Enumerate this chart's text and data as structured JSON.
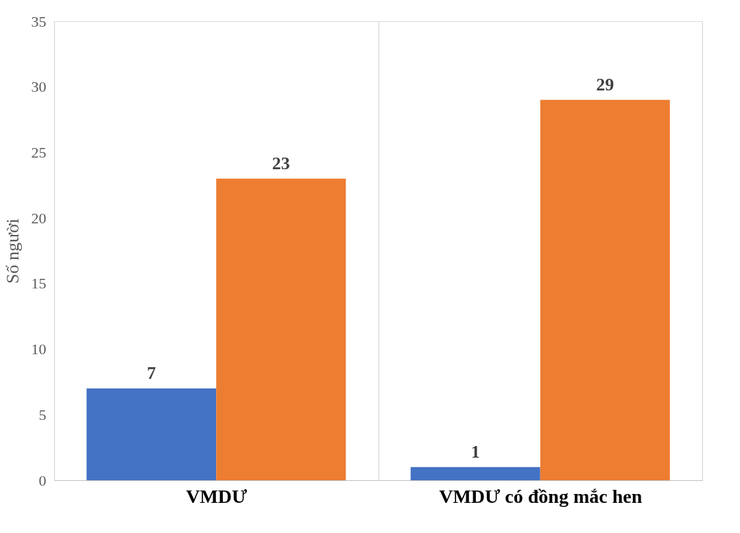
{
  "chart_data": {
    "type": "bar",
    "ylabel": "Số người",
    "categories": [
      "VMDƯ",
      "VMDƯ có đồng mắc hen"
    ],
    "series": [
      {
        "color": "#4472c4",
        "values": [
          7,
          1
        ]
      },
      {
        "color": "#ed7d31",
        "values": [
          23,
          29
        ]
      }
    ],
    "ylim": [
      0,
      35
    ],
    "yticks": [
      0,
      5,
      10,
      15,
      20,
      25,
      30,
      35
    ],
    "grid": "x",
    "data_labels": true,
    "legend": false
  }
}
